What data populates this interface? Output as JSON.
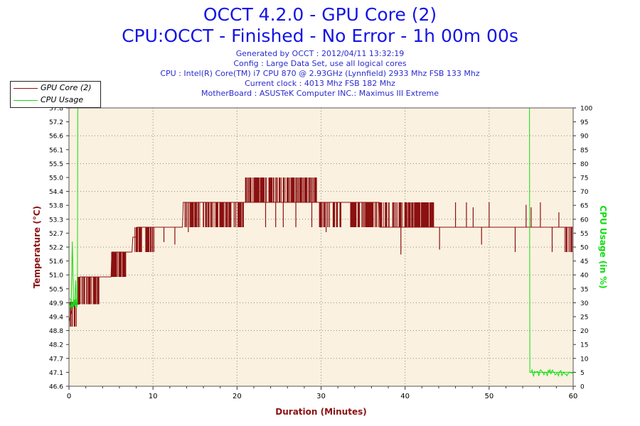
{
  "header": {
    "title_line1": "OCCT 4.2.0 - GPU Core (2)",
    "title_line2": "CPU:OCCT - Finished - No Error - 1h 00m 00s",
    "info": [
      "Generated by OCCT : 2012/04/11 13:32:19",
      "Config : Large Data Set, use all logical cores",
      "CPU : Intel(R) Core(TM) i7 CPU 870 @ 2.93GHz (Lynnfield) 2933 Mhz FSB 133 Mhz",
      "Current clock : 4013 Mhz FSB 182 Mhz",
      "MotherBoard : ASUSTeK Computer INC.: Maximus III Extreme"
    ]
  },
  "legend": {
    "items": [
      {
        "label": "GPU Core (2)",
        "color": "#8b1010"
      },
      {
        "label": "CPU Usage",
        "color": "#11dd11"
      }
    ]
  },
  "chart_data": {
    "type": "line",
    "title": "OCCT 4.2.0 - GPU Core (2)",
    "xlabel": "Duration (Minutes)",
    "ylabel_left": "Temperature (°C)",
    "ylabel_right": "CPU Usage (in %)",
    "xlim": [
      0,
      60
    ],
    "ylim_left": [
      46.6,
      57.8
    ],
    "ylim_right": [
      0,
      100
    ],
    "x_ticks": [
      "0",
      "10",
      "20",
      "30",
      "40",
      "50",
      "60"
    ],
    "left_ticks": [
      "57.8",
      "57.2",
      "56.6",
      "56.1",
      "55.5",
      "55.0",
      "54.4",
      "53.8",
      "53.3",
      "52.7",
      "52.2",
      "51.6",
      "51.0",
      "50.5",
      "49.9",
      "49.4",
      "48.8",
      "48.2",
      "47.7",
      "47.1",
      "46.6"
    ],
    "right_ticks": [
      "100",
      "95",
      "90",
      "85",
      "80",
      "75",
      "70",
      "65",
      "60",
      "55",
      "50",
      "45",
      "40",
      "35",
      "30",
      "25",
      "20",
      "15",
      "10",
      "5",
      "0"
    ],
    "grid": true,
    "series": [
      {
        "name": "GPU Core (2)",
        "axis": "left",
        "color": "#8b1010",
        "base": [
          [
            0,
            49.2
          ],
          [
            0.5,
            49.9
          ],
          [
            1.2,
            49.9
          ],
          [
            1.3,
            51.0
          ],
          [
            5.0,
            51.0
          ],
          [
            5.1,
            52.0
          ],
          [
            7.5,
            52.0
          ],
          [
            7.6,
            52.6
          ],
          [
            8.0,
            52.6
          ],
          [
            8.1,
            53.0
          ],
          [
            13.5,
            53.0
          ],
          [
            13.6,
            54.0
          ],
          [
            36.9,
            54.0
          ],
          [
            37.0,
            53.0
          ],
          [
            60,
            53.0
          ]
        ],
        "noise": [
          {
            "x": [
              0.0,
              0.9
            ],
            "levels": [
              49.0,
              50.0
            ]
          },
          {
            "x": [
              1.0,
              3.6
            ],
            "levels": [
              49.9,
              51.0
            ]
          },
          {
            "x": [
              5.0,
              6.8
            ],
            "levels": [
              51.0,
              52.0
            ]
          },
          {
            "x": [
              7.7,
              10.2
            ],
            "levels": [
              52.0,
              53.0
            ]
          },
          {
            "x": [
              13.8,
              20.8
            ],
            "levels": [
              53.0,
              54.0
            ]
          },
          {
            "x": [
              21.0,
              29.5
            ],
            "levels": [
              54.0,
              55.0
            ]
          },
          {
            "x": [
              29.8,
              32.4
            ],
            "levels": [
              53.0,
              54.0
            ]
          },
          {
            "x": [
              33.5,
              38.6
            ],
            "levels": [
              53.0,
              54.0
            ]
          },
          {
            "x": [
              38.6,
              43.6
            ],
            "levels": [
              53.0,
              54.0
            ]
          },
          {
            "x": [
              59.0,
              60.0
            ],
            "levels": [
              52.0,
              53.0
            ]
          }
        ],
        "spikes": [
          [
            1.8,
            50.0
          ],
          [
            9.2,
            52.1
          ],
          [
            11.3,
            52.4
          ],
          [
            12.6,
            52.3
          ],
          [
            14.2,
            52.8
          ],
          [
            23.4,
            55.0
          ],
          [
            24.6,
            55.0
          ],
          [
            25.5,
            55.0
          ],
          [
            27.0,
            55.0
          ],
          [
            28.9,
            55.0
          ],
          [
            30.6,
            52.8
          ],
          [
            39.5,
            51.9
          ],
          [
            40.2,
            53.7
          ],
          [
            44.1,
            52.1
          ],
          [
            46.0,
            54.0
          ],
          [
            47.3,
            54.0
          ],
          [
            48.1,
            53.8
          ],
          [
            49.1,
            52.3
          ],
          [
            50.0,
            54.0
          ],
          [
            53.1,
            52.0
          ],
          [
            54.4,
            53.9
          ],
          [
            55.0,
            53.8
          ],
          [
            56.1,
            54.0
          ],
          [
            57.5,
            52.0
          ],
          [
            58.3,
            53.6
          ]
        ]
      },
      {
        "name": "CPU Usage",
        "axis": "right",
        "color": "#11dd11",
        "points": [
          [
            0,
            30
          ],
          [
            0.25,
            28
          ],
          [
            0.4,
            52
          ],
          [
            0.55,
            29
          ],
          [
            0.7,
            31
          ],
          [
            0.8,
            38
          ],
          [
            0.9,
            28
          ],
          [
            1.0,
            30
          ],
          [
            1.05,
            100
          ],
          [
            54.8,
            100
          ],
          [
            54.85,
            5
          ],
          [
            60,
            5
          ]
        ],
        "noise": [
          {
            "x": [
              0.1,
              1.0
            ],
            "center": 30,
            "amp": 2
          },
          {
            "x": [
              55.0,
              60.0
            ],
            "center": 4.8,
            "amp": 1.2
          }
        ]
      }
    ]
  }
}
